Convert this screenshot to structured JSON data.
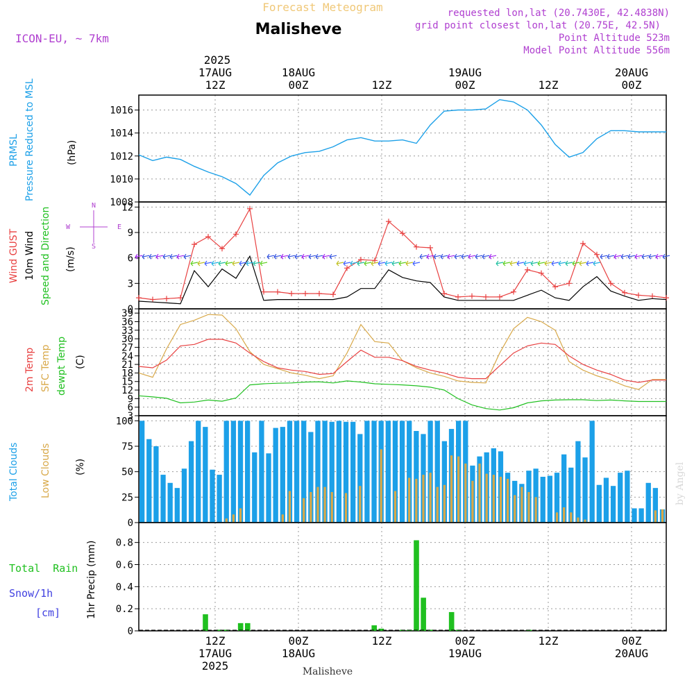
{
  "header": {
    "model": "ICON-EU, ~ 7km",
    "title_top": "Forecast Meteogram",
    "location": "Malisheve",
    "requested": "requested lon,lat (20.7430E, 42.4838N)",
    "grid": "grid point closest lon,lat (20.75E, 42.5N)",
    "point_alt": "Point Altitude 523m",
    "model_alt": "Model Point Altitude 556m",
    "footer_location": "Malisheve",
    "watermark": "by Angel",
    "colors": {
      "orange": "#f0c878",
      "purple": "#b040d0",
      "blue": "#1ca0e8",
      "red": "#e84040",
      "green": "#20c020",
      "tan": "#d8a848",
      "snowblue": "#4040e0"
    }
  },
  "time_axis": {
    "top_year": "2025",
    "top_labels": [
      {
        "hour": 12,
        "lines": [
          "17AUG",
          "12Z"
        ]
      },
      {
        "hour": 24,
        "lines": [
          "18AUG",
          "00Z"
        ]
      },
      {
        "hour": 36,
        "lines": [
          "",
          "12Z"
        ]
      },
      {
        "hour": 48,
        "lines": [
          "19AUG",
          "00Z"
        ]
      },
      {
        "hour": 60,
        "lines": [
          "",
          "12Z"
        ]
      },
      {
        "hour": 72,
        "lines": [
          "20AUG",
          "00Z"
        ]
      }
    ],
    "bottom_labels": [
      {
        "hour": 11,
        "lines": [
          "12Z",
          "17AUG",
          "2025"
        ]
      },
      {
        "hour": 23,
        "lines": [
          "00Z",
          "18AUG"
        ]
      },
      {
        "hour": 35,
        "lines": [
          "12Z"
        ]
      },
      {
        "hour": 47,
        "lines": [
          "00Z",
          "19AUG"
        ]
      },
      {
        "hour": 59,
        "lines": [
          "12Z"
        ]
      },
      {
        "hour": 71,
        "lines": [
          "00Z",
          "20AUG"
        ]
      }
    ]
  },
  "panels": {
    "pressure": {
      "label1": "PRMSL",
      "label2": "Pressure Reduced to MSL",
      "unit": "(hPa)"
    },
    "wind": {
      "label_gust": "Wind GUST",
      "label_wind": "10m Wind",
      "label_dir": "Speed and Direction",
      "unit": "(m/s)",
      "compass_n": "N",
      "compass_s": "S",
      "compass_w": "W",
      "compass_e": "E"
    },
    "temp": {
      "label1": "2m Temp",
      "label2": "SFC Temp",
      "label3": "dewpt Temp",
      "unit": "(C)"
    },
    "clouds": {
      "label1": "Total Clouds",
      "label2": "Low Clouds",
      "unit": "(%)"
    },
    "precip": {
      "label1": "Total  Rain",
      "label2": "Snow/1h",
      "label3": "[cm]",
      "unit": "1hr Precip (mm)"
    }
  },
  "chart_data": [
    {
      "type": "line",
      "name": "pressure",
      "hours": [
        0,
        2,
        4,
        6,
        8,
        10,
        12,
        14,
        16,
        18,
        20,
        22,
        24,
        26,
        28,
        30,
        32,
        34,
        36,
        38,
        40,
        42,
        44,
        46,
        48,
        50,
        52,
        54,
        56,
        58,
        60,
        62,
        64,
        66,
        68,
        70,
        72,
        74,
        76
      ],
      "values": [
        1012.1,
        1011.6,
        1011.9,
        1011.7,
        1011.1,
        1010.6,
        1010.2,
        1009.6,
        1008.6,
        1010.3,
        1011.4,
        1012.0,
        1012.3,
        1012.4,
        1012.8,
        1013.4,
        1013.6,
        1013.3,
        1013.3,
        1013.4,
        1013.1,
        1014.7,
        1015.9,
        1016.0,
        1016.0,
        1016.1,
        1016.9,
        1016.7,
        1016.0,
        1014.7,
        1013.0,
        1011.9,
        1012.3,
        1013.5,
        1014.2,
        1014.2,
        1014.1,
        1014.1,
        1014.1
      ],
      "ylim": [
        1008,
        1017.3
      ],
      "yticks": [
        1008,
        1010,
        1012,
        1014,
        1016
      ]
    },
    {
      "type": "line",
      "name": "wind",
      "hours": [
        0,
        2,
        4,
        6,
        8,
        10,
        12,
        14,
        16,
        18,
        20,
        22,
        24,
        26,
        28,
        30,
        32,
        34,
        36,
        38,
        40,
        42,
        44,
        46,
        48,
        50,
        52,
        54,
        56,
        58,
        60,
        62,
        64,
        66,
        68,
        70,
        72,
        74,
        76
      ],
      "wind10m": [
        0.9,
        0.8,
        0.7,
        0.6,
        4.5,
        2.6,
        4.7,
        3.6,
        6.2,
        1.0,
        1.1,
        1.1,
        1.1,
        1.1,
        1.1,
        1.4,
        2.4,
        2.4,
        4.6,
        3.7,
        3.3,
        3.1,
        1.4,
        1.0,
        1.0,
        1.0,
        1.0,
        1.0,
        1.6,
        2.2,
        1.3,
        1.0,
        2.6,
        3.8,
        2.1,
        1.5,
        1.0,
        1.2,
        1.1
      ],
      "gust": [
        1.3,
        1.1,
        1.2,
        1.3,
        7.6,
        8.5,
        7.1,
        8.8,
        11.8,
        2.0,
        2.0,
        1.8,
        1.8,
        1.8,
        1.7,
        4.8,
        5.8,
        5.7,
        10.3,
        8.9,
        7.3,
        7.2,
        1.8,
        1.4,
        1.5,
        1.4,
        1.4,
        2.0,
        4.6,
        4.2,
        2.6,
        3.0,
        7.7,
        6.4,
        3.0,
        1.9,
        1.6,
        1.5,
        1.3
      ],
      "ylim": [
        0,
        12.6
      ],
      "yticks": [
        0,
        3,
        6,
        9,
        12
      ]
    },
    {
      "type": "line",
      "name": "temperature",
      "hours": [
        0,
        2,
        4,
        6,
        8,
        10,
        12,
        14,
        16,
        18,
        20,
        22,
        24,
        26,
        28,
        30,
        32,
        34,
        36,
        38,
        40,
        42,
        44,
        46,
        48,
        50,
        52,
        54,
        56,
        58,
        60,
        62,
        64,
        66,
        68,
        70,
        72,
        74,
        76
      ],
      "t2m": [
        20.3,
        19.8,
        22.5,
        27.5,
        28.0,
        29.8,
        29.8,
        28.5,
        25.0,
        22.0,
        19.8,
        19.0,
        18.5,
        17.5,
        17.8,
        22.0,
        26.0,
        23.5,
        23.5,
        22.3,
        20.3,
        19.0,
        18.0,
        16.5,
        16.0,
        16.0,
        20.5,
        25.0,
        27.5,
        28.5,
        28.0,
        24.0,
        21.0,
        19.0,
        17.5,
        15.5,
        14.7,
        15.5,
        15.5
      ],
      "sfc": [
        18.0,
        16.5,
        26.5,
        35.0,
        36.5,
        38.5,
        38.3,
        33.5,
        25.5,
        21.0,
        19.5,
        18.0,
        17.2,
        16.0,
        17.0,
        25.0,
        35.0,
        29.0,
        28.5,
        22.3,
        19.8,
        18.0,
        16.8,
        15.2,
        14.7,
        14.5,
        25.0,
        33.5,
        37.5,
        36.0,
        33.0,
        22.0,
        19.0,
        17.0,
        15.5,
        13.5,
        12.2,
        15.7,
        15.7
      ],
      "dewpt": [
        10.0,
        9.6,
        9.1,
        7.5,
        7.8,
        8.5,
        8.1,
        9.2,
        13.8,
        14.2,
        14.4,
        14.5,
        14.8,
        14.9,
        14.5,
        15.2,
        14.8,
        14.2,
        14.0,
        13.8,
        13.5,
        13.0,
        12.0,
        9.0,
        6.8,
        5.5,
        5.0,
        5.8,
        7.5,
        8.2,
        8.5,
        8.6,
        8.6,
        8.3,
        8.5,
        8.2,
        8.0,
        8.0,
        8.0
      ],
      "ylim": [
        3,
        40.5
      ],
      "yticks": [
        3,
        6,
        9,
        12,
        15,
        18,
        21,
        24,
        27,
        30,
        33,
        36,
        39
      ]
    },
    {
      "type": "bar",
      "name": "clouds",
      "hours_start": 0,
      "total": [
        100,
        82,
        75,
        47,
        39,
        34,
        53,
        80,
        100,
        94,
        52,
        47,
        100,
        100,
        100,
        100,
        69,
        100,
        68,
        93,
        94,
        100,
        100,
        100,
        89,
        100,
        100,
        99,
        100,
        99,
        99,
        87,
        100,
        100,
        100,
        100,
        100,
        100,
        100,
        90,
        87,
        100,
        100,
        80,
        92,
        100,
        100,
        56,
        65,
        69,
        73,
        70,
        49,
        41,
        38,
        51,
        53,
        45,
        46,
        49,
        67,
        54,
        80,
        64,
        100,
        37,
        44,
        36,
        49,
        51,
        14,
        14,
        39,
        34,
        13
      ],
      "low": [
        0,
        0,
        0,
        0,
        0,
        0,
        0,
        0,
        0,
        0,
        0,
        0,
        4,
        8,
        14,
        0,
        0,
        0,
        0,
        0,
        8,
        31,
        0,
        24,
        30,
        35,
        35,
        30,
        0,
        29,
        0,
        36,
        0,
        0,
        72,
        0,
        31,
        0,
        44,
        43,
        47,
        49,
        35,
        37,
        66,
        65,
        58,
        41,
        58,
        48,
        47,
        45,
        43,
        27,
        35,
        30,
        25,
        0,
        0,
        10,
        15,
        10,
        5,
        3,
        0,
        0,
        0,
        0,
        0,
        0,
        0,
        0,
        0,
        12,
        13
      ],
      "ylim": [
        0,
        105
      ],
      "yticks": [
        0,
        25,
        50,
        75,
        100
      ]
    },
    {
      "type": "bar",
      "name": "precip",
      "hours_start": 0,
      "rain": [
        0,
        0,
        0,
        0,
        0,
        0,
        0,
        0,
        0,
        0.15,
        0,
        0.01,
        0.01,
        0,
        0.07,
        0.07,
        0,
        0,
        0,
        0,
        0,
        0,
        0,
        0,
        0,
        0,
        0,
        0,
        0,
        0,
        0,
        0,
        0,
        0.05,
        0.02,
        0,
        0,
        0.01,
        0.01,
        0.82,
        0.3,
        0.01,
        0,
        0,
        0.17,
        0.01,
        0,
        0,
        0,
        0,
        0,
        0,
        0,
        0,
        0,
        0.01,
        0,
        0,
        0,
        0,
        0,
        0,
        0,
        0,
        0,
        0,
        0,
        0,
        0,
        0,
        0,
        0,
        0,
        0,
        0
      ],
      "ylim": [
        0,
        0.98
      ],
      "yticks": [
        0,
        0.2,
        0.4,
        0.6,
        0.8
      ],
      "ytick_labels": [
        "0",
        "0.2",
        "0.4",
        "0.6",
        "0.8"
      ]
    }
  ]
}
